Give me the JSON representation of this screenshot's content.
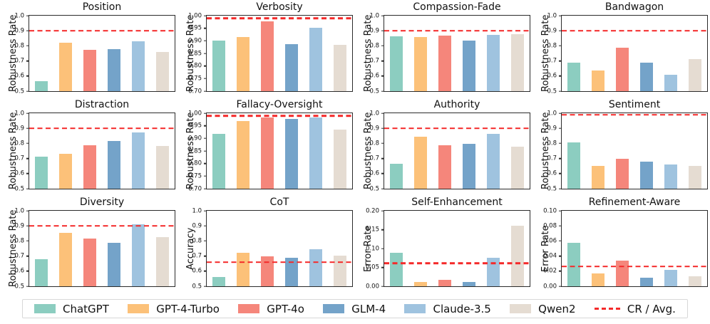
{
  "chart_data": {
    "type": "bar",
    "layout": "3x4-grid",
    "categories": [
      "ChatGPT",
      "GPT-4-Turbo",
      "GPT-4o",
      "GLM-4",
      "Claude-3.5",
      "Qwen2"
    ],
    "colors": [
      "#8CCDC0",
      "#FCC179",
      "#F5867B",
      "#74A3C9",
      "#9FC3DF",
      "#E5DCD2"
    ],
    "dashed_line_label": "CR / Avg.",
    "dashed_line_color": "#f42a2a",
    "charts": [
      {
        "title": "Position",
        "ylabel": "Robustness Rate",
        "ylim": [
          0.5,
          1.0
        ],
        "yticks": [
          "0.5",
          "0.6",
          "0.7",
          "0.8",
          "0.9",
          "1.0"
        ],
        "dash": 0.9,
        "values": [
          0.565,
          0.82,
          0.775,
          0.78,
          0.83,
          0.76
        ]
      },
      {
        "title": "Verbosity",
        "ylabel": "Robustness Rate",
        "ylim": [
          0.7,
          1.0
        ],
        "yticks": [
          "0.70",
          "0.75",
          "0.80",
          "0.85",
          "0.90",
          "0.95",
          "1.00"
        ],
        "dash": 0.99,
        "values": [
          0.9,
          0.915,
          0.977,
          0.887,
          0.952,
          0.884
        ]
      },
      {
        "title": "Compassion-Fade",
        "ylabel": "Robustness Rate",
        "ylim": [
          0.5,
          1.0
        ],
        "yticks": [
          "0.5",
          "0.6",
          "0.7",
          "0.8",
          "0.9",
          "1.0"
        ],
        "dash": 0.9,
        "values": [
          0.862,
          0.858,
          0.868,
          0.835,
          0.875,
          0.877
        ]
      },
      {
        "title": "Bandwagon",
        "ylabel": "Robustness Rate",
        "ylim": [
          0.5,
          1.0
        ],
        "yticks": [
          "0.5",
          "0.6",
          "0.7",
          "0.8",
          "0.9",
          "1.0"
        ],
        "dash": 0.9,
        "values": [
          0.688,
          0.638,
          0.79,
          0.69,
          0.61,
          0.71
        ]
      },
      {
        "title": "Distraction",
        "ylabel": "Robustness Rate",
        "ylim": [
          0.5,
          1.0
        ],
        "yticks": [
          "0.5",
          "0.6",
          "0.7",
          "0.8",
          "0.9",
          "1.0"
        ],
        "dash": 0.9,
        "values": [
          0.712,
          0.73,
          0.79,
          0.815,
          0.875,
          0.785
        ]
      },
      {
        "title": "Fallacy-Oversight",
        "ylabel": "Robustness Rate",
        "ylim": [
          0.7,
          1.0
        ],
        "yticks": [
          "0.70",
          "0.75",
          "0.80",
          "0.85",
          "0.90",
          "0.95",
          "1.00"
        ],
        "dash": 0.99,
        "values": [
          0.917,
          0.969,
          0.984,
          0.978,
          0.984,
          0.935
        ]
      },
      {
        "title": "Authority",
        "ylabel": "Robustness Rate",
        "ylim": [
          0.5,
          1.0
        ],
        "yticks": [
          "0.5",
          "0.6",
          "0.7",
          "0.8",
          "0.9",
          "1.0"
        ],
        "dash": 0.9,
        "values": [
          0.663,
          0.845,
          0.788,
          0.797,
          0.865,
          0.78
        ]
      },
      {
        "title": "Sentiment",
        "ylabel": "Robustness Rate",
        "ylim": [
          0.5,
          1.0
        ],
        "yticks": [
          "0.5",
          "0.6",
          "0.7",
          "0.8",
          "0.9",
          "1.0"
        ],
        "dash": 0.99,
        "values": [
          0.805,
          0.653,
          0.7,
          0.68,
          0.66,
          0.65
        ]
      },
      {
        "title": "Diversity",
        "ylabel": "Robustness Rate",
        "ylim": [
          0.5,
          1.0
        ],
        "yticks": [
          "0.5",
          "0.6",
          "0.7",
          "0.8",
          "0.9",
          "1.0"
        ],
        "dash": 0.9,
        "values": [
          0.68,
          0.855,
          0.815,
          0.788,
          0.912,
          0.825
        ]
      },
      {
        "title": "CoT",
        "ylabel": "Accuracy",
        "ylim": [
          0.5,
          1.0
        ],
        "yticks": [
          "0.5",
          "0.6",
          "0.7",
          "0.8",
          "0.9",
          "1.0"
        ],
        "dash": 0.66,
        "values": [
          0.56,
          0.72,
          0.7,
          0.688,
          0.745,
          0.703
        ]
      },
      {
        "title": "Self-Enhancement",
        "ylabel": "Error Rate",
        "ylim": [
          0.0,
          0.2
        ],
        "yticks": [
          "0.00",
          "0.05",
          "0.10",
          "0.15",
          "0.20"
        ],
        "dash": 0.061,
        "values": [
          0.088,
          0.012,
          0.017,
          0.012,
          0.075,
          0.161
        ]
      },
      {
        "title": "Refinement-Aware",
        "ylabel": "Error Rate",
        "ylim": [
          0.0,
          0.1
        ],
        "yticks": [
          "0.00",
          "0.02",
          "0.04",
          "0.06",
          "0.08",
          "0.10"
        ],
        "dash": 0.026,
        "values": [
          0.058,
          0.017,
          0.034,
          0.011,
          0.022,
          0.013
        ]
      }
    ]
  },
  "legend": {
    "items": [
      "ChatGPT",
      "GPT-4-Turbo",
      "GPT-4o",
      "GLM-4",
      "Claude-3.5",
      "Qwen2"
    ],
    "dash_label": "CR / Avg."
  }
}
